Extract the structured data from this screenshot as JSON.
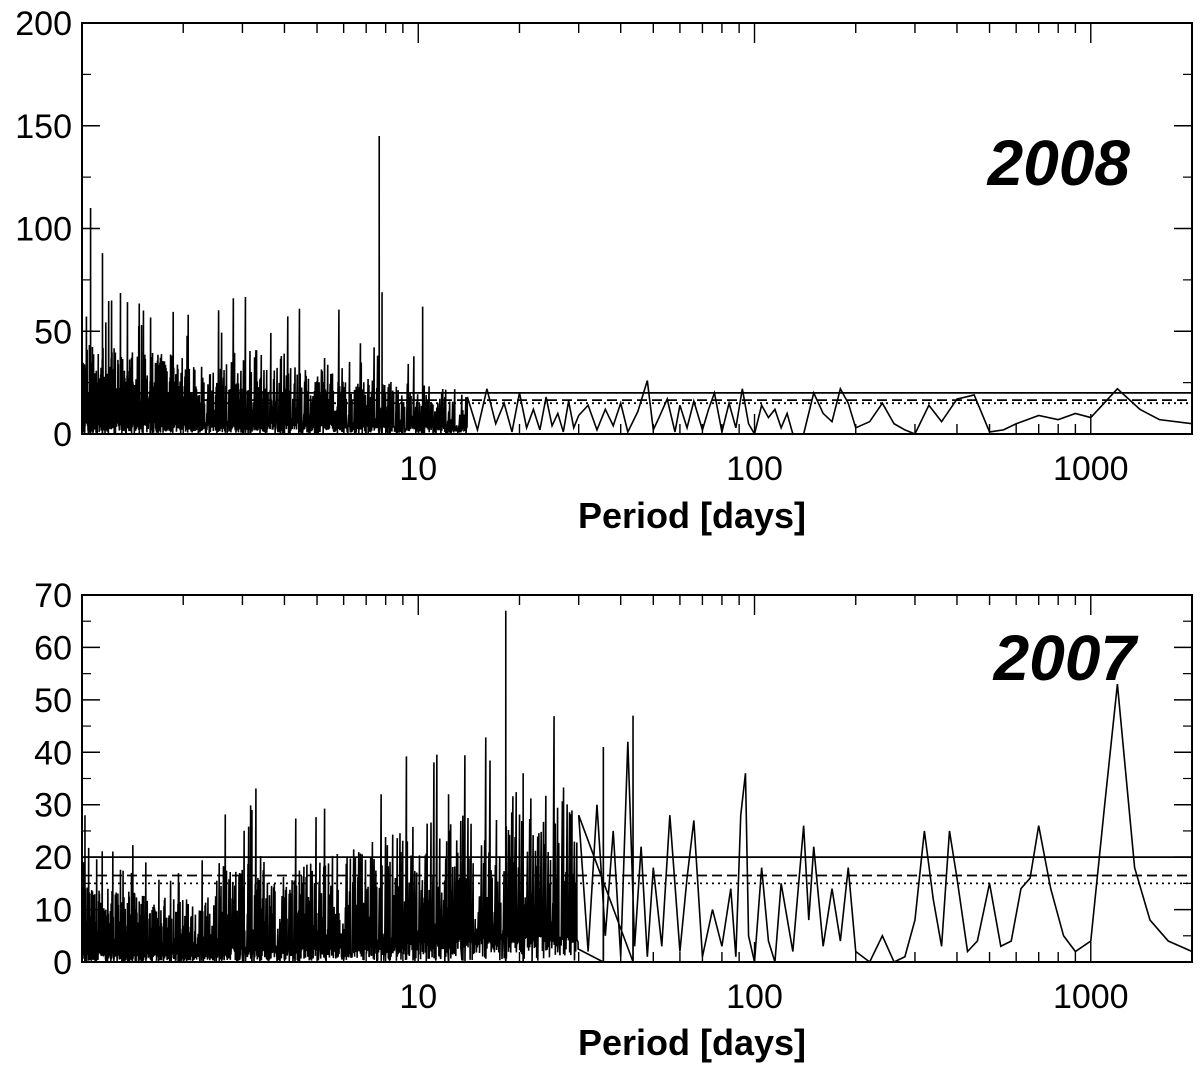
{
  "chart_data": [
    {
      "type": "line",
      "annotation": "2008",
      "xlabel": "Period [days]",
      "ylabel": "",
      "xscale": "log",
      "xlim": [
        1.0,
        2000
      ],
      "ylim": [
        0,
        200
      ],
      "xticks": [
        10,
        100,
        1000
      ],
      "xtick_labels": [
        "10",
        "100",
        "1000"
      ],
      "yticks": [
        0,
        50,
        100,
        150,
        200
      ],
      "ytick_labels": [
        "0",
        "50",
        "100",
        "150",
        "200"
      ],
      "grid": false,
      "significance_levels": [
        {
          "style": "solid",
          "value": 20
        },
        {
          "style": "dashed",
          "value": 16.5
        },
        {
          "style": "dotted",
          "value": 15
        }
      ],
      "highlighted_peaks": [
        {
          "x": 1.06,
          "y": 110
        },
        {
          "x": 1.15,
          "y": 88
        },
        {
          "x": 7.65,
          "y": 145
        },
        {
          "x": 7.8,
          "y": 69
        },
        {
          "x": 10.3,
          "y": 62
        }
      ],
      "series": [
        {
          "x": [
            14,
            15,
            16,
            17,
            18,
            19,
            20,
            21,
            22,
            23,
            24,
            25,
            26,
            27,
            28,
            29,
            30,
            32,
            34,
            36,
            38,
            40,
            42,
            45,
            48,
            50,
            52,
            55,
            58,
            60,
            63,
            66,
            70,
            73,
            76,
            80,
            84,
            88,
            92,
            96,
            100,
            105,
            110,
            115,
            120,
            125,
            130,
            140,
            150,
            160,
            170,
            180,
            190,
            200,
            220,
            240,
            260,
            280,
            300,
            330,
            360,
            400,
            450,
            500,
            550,
            600,
            700,
            800,
            900,
            1000,
            1200,
            1400,
            1600,
            2000
          ],
          "y": [
            18,
            2,
            22,
            5,
            15,
            1,
            20,
            3,
            12,
            2,
            18,
            4,
            10,
            1,
            16,
            3,
            9,
            14,
            2,
            12,
            4,
            15,
            1,
            11,
            26,
            2,
            8,
            17,
            1,
            14,
            3,
            16,
            2,
            12,
            20,
            1,
            15,
            3,
            22,
            5,
            0,
            14,
            8,
            12,
            3,
            10,
            0,
            0,
            20,
            10,
            6,
            22,
            15,
            3,
            6,
            15,
            5,
            2,
            0,
            14,
            6,
            17,
            19,
            1,
            2,
            5,
            9,
            7,
            10,
            8,
            22,
            12,
            7,
            5
          ]
        }
      ]
    },
    {
      "type": "line",
      "annotation": "2007",
      "xlabel": "Period [days]",
      "ylabel": "",
      "xscale": "log",
      "xlim": [
        1.0,
        2000
      ],
      "ylim": [
        0,
        70
      ],
      "xticks": [
        10,
        100,
        1000
      ],
      "xtick_labels": [
        "10",
        "100",
        "1000"
      ],
      "yticks": [
        0,
        10,
        20,
        30,
        40,
        50,
        60,
        70
      ],
      "ytick_labels": [
        "0",
        "10",
        "20",
        "30",
        "40",
        "50",
        "60",
        "70"
      ],
      "grid": false,
      "significance_levels": [
        {
          "style": "solid",
          "value": 20
        },
        {
          "style": "dashed",
          "value": 16.5
        },
        {
          "style": "dotted",
          "value": 15
        }
      ],
      "highlighted_peaks": [
        {
          "x": 1.02,
          "y": 28
        },
        {
          "x": 3.2,
          "y": 29
        },
        {
          "x": 12.3,
          "y": 32
        },
        {
          "x": 18.2,
          "y": 67
        },
        {
          "x": 20.5,
          "y": 36
        },
        {
          "x": 35.5,
          "y": 41
        },
        {
          "x": 43.5,
          "y": 47
        }
      ],
      "series": [
        {
          "x": [
            30,
            32,
            34,
            36,
            38,
            40,
            42,
            44,
            46,
            48,
            50,
            53,
            56,
            60,
            63,
            66,
            70,
            75,
            80,
            85,
            88,
            91,
            94,
            96,
            100,
            105,
            110,
            115,
            120,
            130,
            140,
            145,
            150,
            160,
            170,
            180,
            190,
            200,
            220,
            240,
            260,
            280,
            300,
            320,
            340,
            360,
            380,
            400,
            430,
            460,
            500,
            540,
            580,
            620,
            660,
            700,
            760,
            830,
            900,
            1000,
            1100,
            1200,
            1350,
            1500,
            1700,
            2000
          ],
          "y": [
            28,
            2,
            30,
            5,
            25,
            1,
            42,
            3,
            22,
            1,
            18,
            3,
            28,
            2,
            16,
            27,
            1,
            10,
            3,
            14,
            1,
            28,
            36,
            5,
            0,
            18,
            4,
            0,
            15,
            2,
            26,
            8,
            22,
            3,
            14,
            4,
            18,
            2,
            0,
            5,
            0,
            1,
            8,
            25,
            12,
            3,
            25,
            16,
            2,
            4,
            15,
            3,
            4,
            14,
            16,
            26,
            14,
            5,
            2,
            4,
            30,
            53,
            18,
            8,
            4,
            2
          ]
        }
      ]
    }
  ]
}
